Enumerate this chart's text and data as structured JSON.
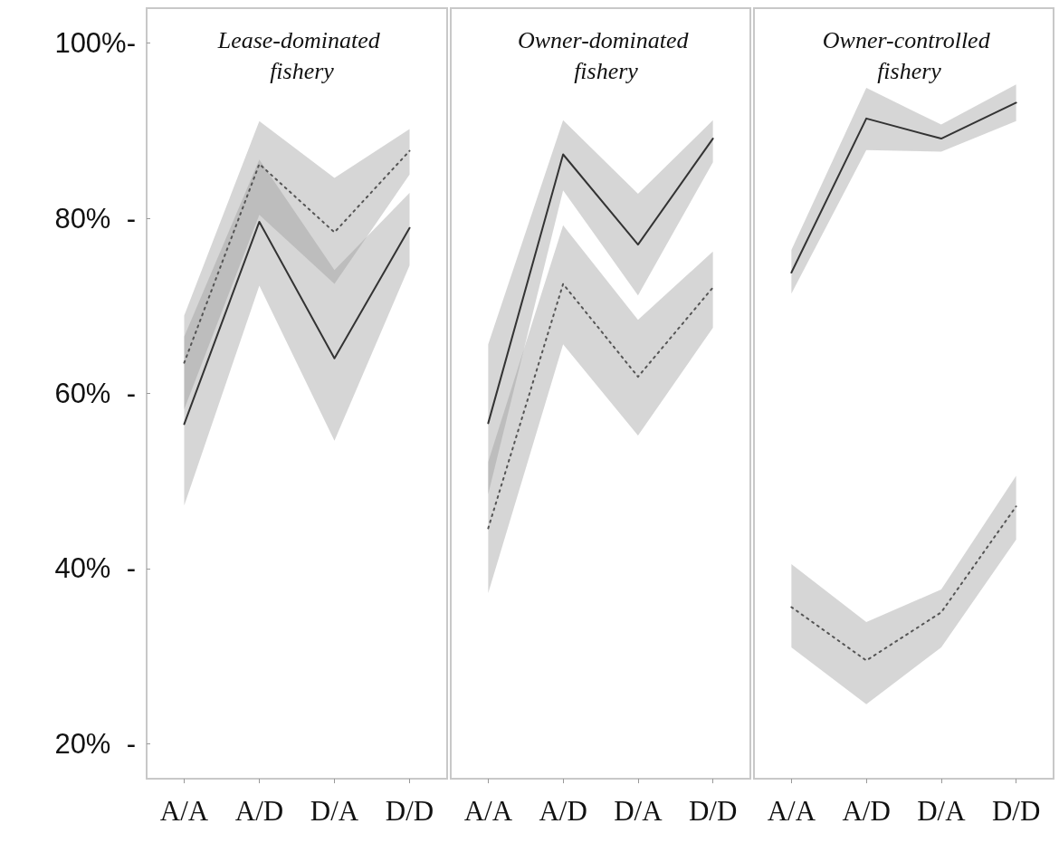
{
  "chart_data": [
    {
      "type": "line",
      "title": "Lease-dominated fishery",
      "categories": [
        "A/A",
        "A/D",
        "D/A",
        "D/D"
      ],
      "ylim": [
        16,
        104
      ],
      "yticks": [
        {
          "value": 20,
          "label": "20%  -"
        },
        {
          "value": 40,
          "label": "40%  -"
        },
        {
          "value": 60,
          "label": "60%  -"
        },
        {
          "value": 80,
          "label": "80%  -"
        },
        {
          "value": 100,
          "label": "100%-"
        }
      ],
      "grid": false,
      "marker": "none",
      "series": [
        {
          "color": "#333333",
          "line_style": "solid",
          "values": [
            56.5,
            79.6,
            64.0,
            78.9
          ],
          "lower": [
            47.2,
            72.3,
            54.6,
            74.6
          ],
          "upper": [
            66.5,
            86.7,
            74.1,
            82.9
          ]
        },
        {
          "color": "#555555",
          "line_style": "dotted",
          "values": [
            63.5,
            86.2,
            78.4,
            87.7
          ],
          "lower": [
            58.2,
            80.4,
            72.5,
            85.0
          ],
          "upper": [
            68.9,
            91.1,
            84.6,
            90.2
          ]
        }
      ]
    },
    {
      "type": "line",
      "title": "Owner-dominated fishery",
      "categories": [
        "A/A",
        "A/D",
        "D/A",
        "D/D"
      ],
      "ylim": [
        16,
        104
      ],
      "tick_labels": "x",
      "grid": false,
      "marker": "none",
      "series": [
        {
          "color": "#555555",
          "line_style": "dotted",
          "values": [
            44.6,
            72.5,
            61.9,
            72.1
          ],
          "lower": [
            37.2,
            65.6,
            55.2,
            67.5
          ],
          "upper": [
            52.2,
            79.2,
            68.4,
            76.2
          ]
        },
        {
          "color": "#333333",
          "line_style": "solid",
          "values": [
            56.6,
            87.3,
            77.0,
            89.1
          ],
          "lower": [
            48.5,
            83.2,
            71.2,
            86.4
          ],
          "upper": [
            65.6,
            91.2,
            82.8,
            91.2
          ]
        }
      ]
    },
    {
      "type": "line",
      "title": "Owner-controlled fishery",
      "categories": [
        "A/A",
        "A/D",
        "D/A",
        "D/D"
      ],
      "ylim": [
        16,
        104
      ],
      "tick_labels": "x",
      "grid": false,
      "marker": "none",
      "series": [
        {
          "color": "#555555",
          "line_style": "dotted",
          "values": [
            35.6,
            29.5,
            35.0,
            47.1
          ],
          "lower": [
            31.0,
            24.5,
            31.0,
            43.3
          ],
          "upper": [
            40.5,
            33.9,
            37.6,
            50.6
          ]
        },
        {
          "color": "#333333",
          "line_style": "solid",
          "values": [
            73.8,
            91.4,
            89.1,
            93.2
          ],
          "lower": [
            71.4,
            87.8,
            87.6,
            91.1
          ],
          "upper": [
            76.4,
            94.9,
            90.7,
            95.3
          ]
        }
      ]
    }
  ]
}
